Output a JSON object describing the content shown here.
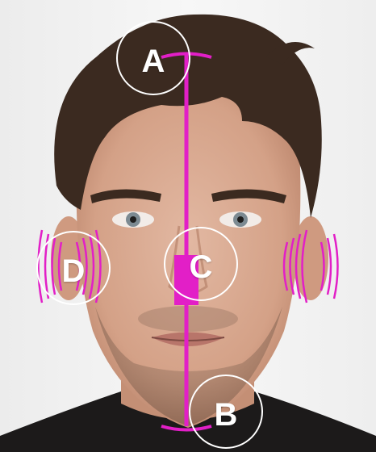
{
  "image": {
    "subject": "man-face-portrait"
  },
  "colors": {
    "accent": "#e21fc7",
    "marker_ring": "#ffffff",
    "background": "#f3f3f3",
    "skin": "#d9aa92",
    "hair": "#3b2a20",
    "shirt": "#1c1a1a"
  },
  "markers": [
    {
      "id": "A",
      "label": "A"
    },
    {
      "id": "B",
      "label": "B"
    },
    {
      "id": "C",
      "label": "C"
    },
    {
      "id": "D",
      "label": "D"
    }
  ]
}
